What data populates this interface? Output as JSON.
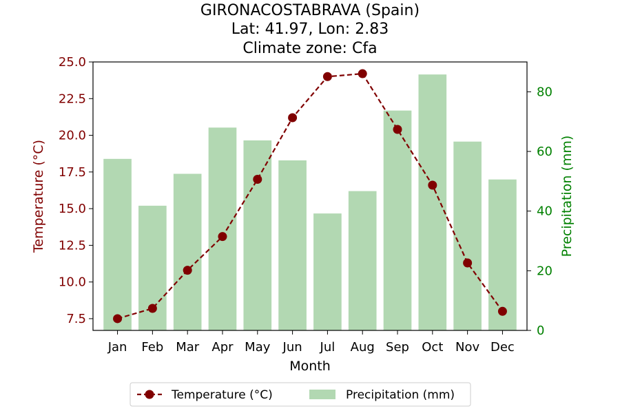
{
  "chart_data": {
    "type": "bar+line",
    "title_lines": [
      "GIRONACOSTABRAVA (Spain)",
      "Lat: 41.97, Lon: 2.83",
      "Climate zone: Cfa"
    ],
    "xlabel": "Month",
    "categories": [
      "Jan",
      "Feb",
      "Mar",
      "Apr",
      "May",
      "Jun",
      "Jul",
      "Aug",
      "Sep",
      "Oct",
      "Nov",
      "Dec"
    ],
    "temperature": {
      "name": "Temperature (°C)",
      "axis_label": "Temperature (°C)",
      "color": "#800000",
      "values": [
        7.5,
        8.2,
        10.8,
        13.1,
        17.0,
        21.2,
        24.0,
        24.2,
        20.4,
        16.6,
        11.3,
        8.0
      ],
      "ylim": [
        6.7,
        25.0
      ],
      "ticks": [
        7.5,
        10.0,
        12.5,
        15.0,
        17.5,
        20.0,
        22.5,
        25.0
      ],
      "tick_labels": [
        "7.5",
        "10.0",
        "12.5",
        "15.0",
        "17.5",
        "20.0",
        "22.5",
        "25.0"
      ]
    },
    "precipitation": {
      "name": "Precipitation (mm)",
      "axis_label": "Precipitation (mm)",
      "color": "#b2d8b2",
      "axis_color": "#008000",
      "values": [
        57.5,
        41.8,
        52.5,
        68.0,
        63.7,
        57.0,
        39.2,
        46.7,
        73.7,
        85.8,
        63.3,
        50.6
      ],
      "ylim": [
        0,
        90
      ],
      "ticks": [
        0,
        20,
        40,
        60,
        80
      ],
      "tick_labels": [
        "0",
        "20",
        "40",
        "60",
        "80"
      ]
    },
    "legend_placement": "below",
    "grid": false
  }
}
